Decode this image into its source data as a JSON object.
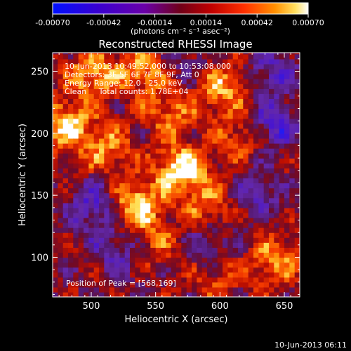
{
  "colorbar": {
    "tick_labels": [
      "-0.00070",
      "-0.00042",
      "-0.00014",
      "0.00014",
      "0.00042",
      "0.00070"
    ],
    "unit_label": "(photons cm⁻² s⁻¹ asec⁻²)",
    "range": [
      -0.0007,
      0.0007
    ]
  },
  "title": "Reconstructed RHESSI Image",
  "info": {
    "line1": "10-Jun-2013 10:49:52.000 to 10:53:08.000",
    "line2": "Detectors: 3F 5F 6F 7F 8F 9F, Att 0",
    "line3": "Energy Range: 12.0 - 25.0 keV",
    "line4": "Clean     Total counts: 1.78E+04"
  },
  "peak_label": "Position of Peak = [568,169]",
  "axes": {
    "xlabel": "Heliocentric X (arcsec)",
    "ylabel": "Heliocentric Y (arcsec)",
    "x_ticks": [
      "500",
      "550",
      "600",
      "650"
    ],
    "y_ticks": [
      "250",
      "200",
      "150",
      "100"
    ],
    "xlim": [
      470,
      662
    ],
    "ylim": [
      68,
      265
    ]
  },
  "footer_timestamp": "10-Jun-2013 06:11",
  "palette": {
    "colorbar_stops": [
      "#0010ff",
      "#3a00c8",
      "#6a00a8",
      "#a00000",
      "#ff2000",
      "#ff8000",
      "#ffd040",
      "#ffffff"
    ],
    "background": "#000000",
    "foreground": "#ffffff"
  },
  "image_features": [
    {
      "x": 568,
      "y": 169,
      "level": 1.0
    },
    {
      "x": 533,
      "y": 140,
      "level": 0.9
    },
    {
      "x": 478,
      "y": 205,
      "level": 0.85
    },
    {
      "x": 500,
      "y": 245,
      "level": 0.75
    },
    {
      "x": 540,
      "y": 250,
      "level": 0.7
    },
    {
      "x": 600,
      "y": 235,
      "level": 0.7
    },
    {
      "x": 510,
      "y": 185,
      "level": 0.6
    },
    {
      "x": 640,
      "y": 95,
      "level": 0.65
    },
    {
      "x": 590,
      "y": 140,
      "level": 0.55
    },
    {
      "x": 560,
      "y": 215,
      "level": 0.55
    },
    {
      "x": 615,
      "y": 195,
      "level": 0.5
    },
    {
      "x": 545,
      "y": 110,
      "level": 0.45
    },
    {
      "x": 595,
      "y": 85,
      "level": 0.45
    },
    {
      "x": 500,
      "y": 140,
      "level": -0.6
    },
    {
      "x": 520,
      "y": 105,
      "level": -0.55
    },
    {
      "x": 640,
      "y": 205,
      "level": -0.7
    },
    {
      "x": 640,
      "y": 250,
      "level": -0.5
    },
    {
      "x": 590,
      "y": 105,
      "level": -0.45
    },
    {
      "x": 625,
      "y": 150,
      "level": -0.5
    },
    {
      "x": 570,
      "y": 255,
      "level": -0.35
    }
  ]
}
